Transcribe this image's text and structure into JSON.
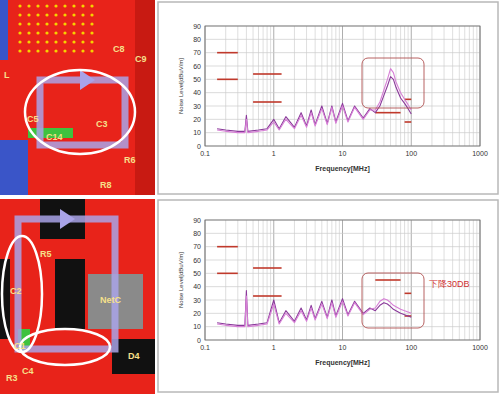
{
  "chart_data": [
    {
      "type": "line",
      "log": "x",
      "grid": true,
      "x_label": "Frequency[MHz]",
      "y_label": "Noise Level[dBuV/m]",
      "xlim": [
        0.1,
        1000
      ],
      "xticks": [
        0.1,
        1,
        10,
        100,
        1000
      ],
      "ylim": [
        0,
        90
      ],
      "yticks": [
        0,
        10,
        20,
        30,
        40,
        50,
        60,
        70,
        80,
        90
      ],
      "x": [
        0.15,
        0.2,
        0.3,
        0.38,
        0.4,
        0.42,
        0.6,
        0.8,
        1,
        1.2,
        1.5,
        2,
        2.5,
        3,
        3.5,
        4,
        5,
        6,
        7,
        8,
        10,
        12,
        15,
        20,
        25,
        30,
        35,
        40,
        45,
        50,
        55,
        60,
        70,
        80,
        90,
        100
      ],
      "series": [
        {
          "color": "#8a3a9a",
          "values": [
            13,
            12,
            11,
            11,
            23,
            11,
            12,
            13,
            20,
            13,
            22,
            14,
            25,
            15,
            27,
            16,
            30,
            17,
            30,
            18,
            32,
            19,
            30,
            21,
            28,
            25,
            30,
            38,
            45,
            52,
            50,
            44,
            36,
            32,
            28,
            24
          ]
        },
        {
          "color": "#d77fd6",
          "values": [
            12,
            11,
            10,
            10,
            20,
            10,
            11,
            12,
            18,
            12,
            20,
            13,
            23,
            14,
            25,
            15,
            28,
            16,
            29,
            17,
            30,
            18,
            29,
            20,
            27,
            27,
            33,
            42,
            50,
            58,
            55,
            48,
            40,
            35,
            31,
            27
          ]
        }
      ],
      "limit_lines": {
        "color": "#c0392b",
        "segments": [
          {
            "x": [
              0.15,
              0.3
            ],
            "y": 70
          },
          {
            "x": [
              0.15,
              0.3
            ],
            "y": 50
          },
          {
            "x": [
              0.5,
              1.3
            ],
            "y": 54
          },
          {
            "x": [
              0.5,
              1.3
            ],
            "y": 33
          },
          {
            "x": [
              30,
              70
            ],
            "y": 25
          },
          {
            "x": [
              80,
              100
            ],
            "y": 35
          },
          {
            "x": [
              80,
              100
            ],
            "y": 18
          }
        ]
      }
    },
    {
      "type": "line",
      "log": "x",
      "grid": true,
      "x_label": "Frequency[MHz]",
      "y_label": "Noise Level[dBuV/m]",
      "xlim": [
        0.1,
        1000
      ],
      "xticks": [
        0.1,
        1,
        10,
        100,
        1000
      ],
      "ylim": [
        0,
        90
      ],
      "yticks": [
        0,
        10,
        20,
        30,
        40,
        50,
        60,
        70,
        80,
        90
      ],
      "x": [
        0.15,
        0.2,
        0.3,
        0.38,
        0.4,
        0.42,
        0.6,
        0.8,
        1,
        1.2,
        1.5,
        2,
        2.5,
        3,
        3.5,
        4,
        5,
        6,
        7,
        8,
        10,
        12,
        15,
        20,
        25,
        30,
        35,
        40,
        45,
        50,
        55,
        60,
        70,
        80,
        90,
        100
      ],
      "series": [
        {
          "color": "#8a3a9a",
          "values": [
            13,
            12,
            11,
            11,
            37,
            11,
            12,
            13,
            30,
            13,
            22,
            14,
            24,
            15,
            26,
            16,
            29,
            17,
            30,
            18,
            31,
            19,
            29,
            20,
            24,
            22,
            26,
            28,
            27,
            25,
            23,
            22,
            20,
            19,
            18,
            17
          ]
        },
        {
          "color": "#d77fd6",
          "values": [
            12,
            11,
            10,
            10,
            33,
            10,
            11,
            12,
            27,
            12,
            20,
            13,
            22,
            14,
            24,
            15,
            27,
            16,
            28,
            17,
            29,
            18,
            28,
            19,
            23,
            24,
            29,
            31,
            30,
            28,
            26,
            25,
            23,
            22,
            21,
            20
          ]
        }
      ],
      "limit_lines": {
        "color": "#c0392b",
        "segments": [
          {
            "x": [
              0.15,
              0.3
            ],
            "y": 70
          },
          {
            "x": [
              0.15,
              0.3
            ],
            "y": 50
          },
          {
            "x": [
              0.5,
              1.3
            ],
            "y": 54
          },
          {
            "x": [
              0.5,
              1.3
            ],
            "y": 33
          },
          {
            "x": [
              30,
              70
            ],
            "y": 45
          },
          {
            "x": [
              80,
              100
            ],
            "y": 35
          },
          {
            "x": [
              80,
              100
            ],
            "y": 18
          }
        ]
      },
      "annotations": [
        {
          "text": "下降30DB"
        }
      ]
    }
  ],
  "pcb_layouts": [
    {
      "labels": [
        "L",
        "C8",
        "C9",
        "C5",
        "C14",
        "C3",
        "R6",
        "R8"
      ]
    },
    {
      "labels": [
        "R5",
        "C2",
        "C1",
        "NetC",
        "D4",
        "R3",
        "C4"
      ]
    }
  ]
}
